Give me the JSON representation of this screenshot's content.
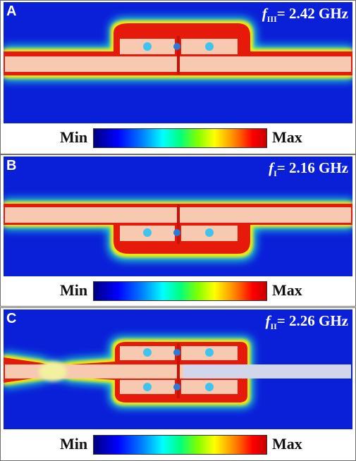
{
  "panels": [
    {
      "letter": "A",
      "freq_sub": "III",
      "freq_value": "= 2.42 GHz",
      "colorbar": {
        "min_label": "Min",
        "max_label": "Max"
      }
    },
    {
      "letter": "B",
      "freq_sub": "I",
      "freq_value": "= 2.16 GHz",
      "colorbar": {
        "min_label": "Min",
        "max_label": "Max"
      }
    },
    {
      "letter": "C",
      "freq_sub": "II",
      "freq_value": "= 2.26 GHz",
      "colorbar": {
        "min_label": "Min",
        "max_label": "Max"
      }
    }
  ],
  "freq_symbol": "f",
  "colors": {
    "background": "#0a1fd8",
    "field_hot": "#e61a0a",
    "metal": "#f6c9b0",
    "via": "#3fc4f0"
  }
}
